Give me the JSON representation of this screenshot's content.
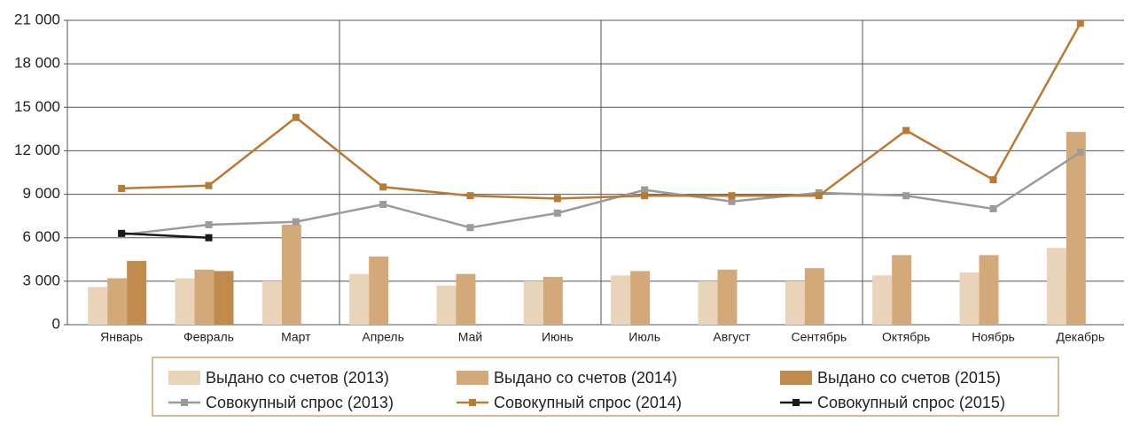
{
  "chart_data": {
    "type": "bar_line",
    "categories": [
      "Январь",
      "Февраль",
      "Март",
      "Апрель",
      "Май",
      "Июнь",
      "Июль",
      "Август",
      "Сентябрь",
      "Октябрь",
      "Ноябрь",
      "Декабрь"
    ],
    "series": [
      {
        "name": "Выдано со счетов (2013)",
        "kind": "bar",
        "color": "#e9d4b9",
        "values": [
          2600,
          3200,
          3000,
          3500,
          2700,
          3000,
          3400,
          3000,
          3000,
          3400,
          3600,
          5300
        ]
      },
      {
        "name": "Выдано со счетов (2014)",
        "kind": "bar",
        "color": "#d4a979",
        "values": [
          3200,
          3800,
          6900,
          4700,
          3500,
          3300,
          3700,
          3800,
          3900,
          4800,
          4800,
          13300
        ]
      },
      {
        "name": "Выдано со счетов (2015)",
        "kind": "bar",
        "color": "#c08b4d",
        "values": [
          4400,
          3700,
          null,
          null,
          null,
          null,
          null,
          null,
          null,
          null,
          null,
          null
        ]
      },
      {
        "name": "Совокупный спрос (2013)",
        "kind": "line",
        "color": "#9b9b9b",
        "values": [
          6200,
          6900,
          7100,
          8300,
          6700,
          7700,
          9300,
          8500,
          9100,
          8900,
          8000,
          11900
        ]
      },
      {
        "name": "Совокупный спрос (2014)",
        "kind": "line",
        "color": "#b97b33",
        "values": [
          9400,
          9600,
          14300,
          9500,
          8900,
          8700,
          8900,
          8900,
          8900,
          13400,
          10000,
          20800
        ]
      },
      {
        "name": "Совокупный спрос (2015)",
        "kind": "line",
        "color": "#1a1a1a",
        "values": [
          6300,
          6000,
          null,
          null,
          null,
          null,
          null,
          null,
          null,
          null,
          null,
          null
        ]
      }
    ],
    "ylim": [
      0,
      21000
    ],
    "yticks": [
      0,
      {
        "value": 3000,
        "label": "3 000"
      },
      {
        "value": 6000,
        "label": "6 000"
      },
      {
        "value": 9000,
        "label": "9 000"
      },
      {
        "value": 12000,
        "label": "12 000"
      },
      {
        "value": 15000,
        "label": "15 000"
      },
      {
        "value": 18000,
        "label": "18 000"
      },
      {
        "value": 21000,
        "label": "21 000"
      }
    ],
    "grid": true,
    "legend": "bottom"
  }
}
